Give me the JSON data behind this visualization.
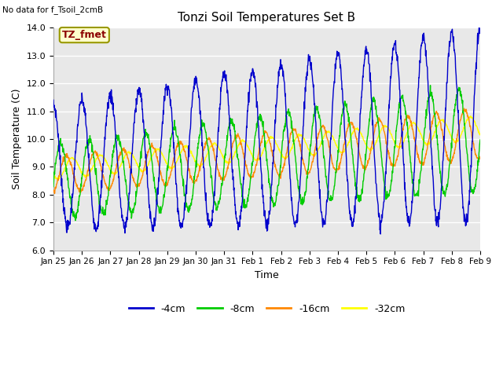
{
  "title": "Tonzi Soil Temperatures Set B",
  "no_data_label": "No data for f_Tsoil_2cmB",
  "annotation_label": "TZ_fmet",
  "xlabel": "Time",
  "ylabel": "Soil Temperature (C)",
  "ylim": [
    6.0,
    14.0
  ],
  "yticks": [
    6.0,
    7.0,
    8.0,
    9.0,
    10.0,
    11.0,
    12.0,
    13.0,
    14.0
  ],
  "xtick_labels": [
    "Jan 25",
    "Jan 26",
    "Jan 27",
    "Jan 28",
    "Jan 29",
    "Jan 30",
    "Jan 31",
    "Feb 1",
    "Feb 2",
    "Feb 3",
    "Feb 4",
    "Feb 5",
    "Feb 6",
    "Feb 7",
    "Feb 8",
    "Feb 9"
  ],
  "colors": {
    "4cm": "#0000cc",
    "8cm": "#00cc00",
    "16cm": "#ff8800",
    "32cm": "#ffff00"
  },
  "legend_labels": [
    "-4cm",
    "-8cm",
    "-16cm",
    "-32cm"
  ],
  "fig_bg_color": "#ffffff",
  "ax_bg_color": "#e8e8e8",
  "grid_color": "#ffffff",
  "annotation_bg": "#ffffcc",
  "annotation_border": "#999900"
}
